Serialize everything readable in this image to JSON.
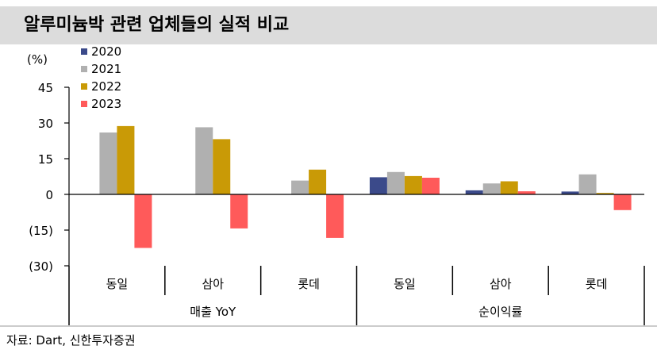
{
  "title": "알루미늄박 관련 업체들의 실적 비교",
  "source": "자료: Dart, 신한투자증권",
  "colors": {
    "title_bg": "#dcdcdc",
    "2020": "#3b4a8a",
    "2021": "#b0b0b0",
    "2022": "#c99a06",
    "2023": "#ff5a5a"
  },
  "chart_data": {
    "type": "bar",
    "unit_label": "(%)",
    "ylim": [
      -30,
      45
    ],
    "y_ticks": [
      {
        "value": 45,
        "label": "45"
      },
      {
        "value": 30,
        "label": "30"
      },
      {
        "value": 15,
        "label": "15"
      },
      {
        "value": 0,
        "label": "0"
      },
      {
        "value": -15,
        "label": "(15)"
      },
      {
        "value": -30,
        "label": "(30)"
      }
    ],
    "grid": false,
    "legend_position": "top-left",
    "groups": [
      {
        "label": "매출 YoY",
        "categories": [
          "동일",
          "삼아",
          "롯데"
        ]
      },
      {
        "label": "순이익률",
        "categories": [
          "동일",
          "삼아",
          "롯데"
        ]
      }
    ],
    "categories": [
      "동일",
      "삼아",
      "롯데",
      "동일",
      "삼아",
      "롯데"
    ],
    "series": [
      {
        "name": "2020",
        "color": "#3b4a8a",
        "values": [
          null,
          null,
          null,
          7.2,
          1.7,
          1.2
        ]
      },
      {
        "name": "2021",
        "color": "#b0b0b0",
        "values": [
          26.0,
          28.2,
          5.8,
          9.4,
          4.6,
          8.4
        ]
      },
      {
        "name": "2022",
        "color": "#c99a06",
        "values": [
          28.7,
          23.2,
          10.4,
          7.7,
          5.5,
          0.6
        ]
      },
      {
        "name": "2023",
        "color": "#ff5a5a",
        "values": [
          -22.5,
          -14.3,
          -18.3,
          7.0,
          1.3,
          -6.6
        ]
      }
    ]
  }
}
